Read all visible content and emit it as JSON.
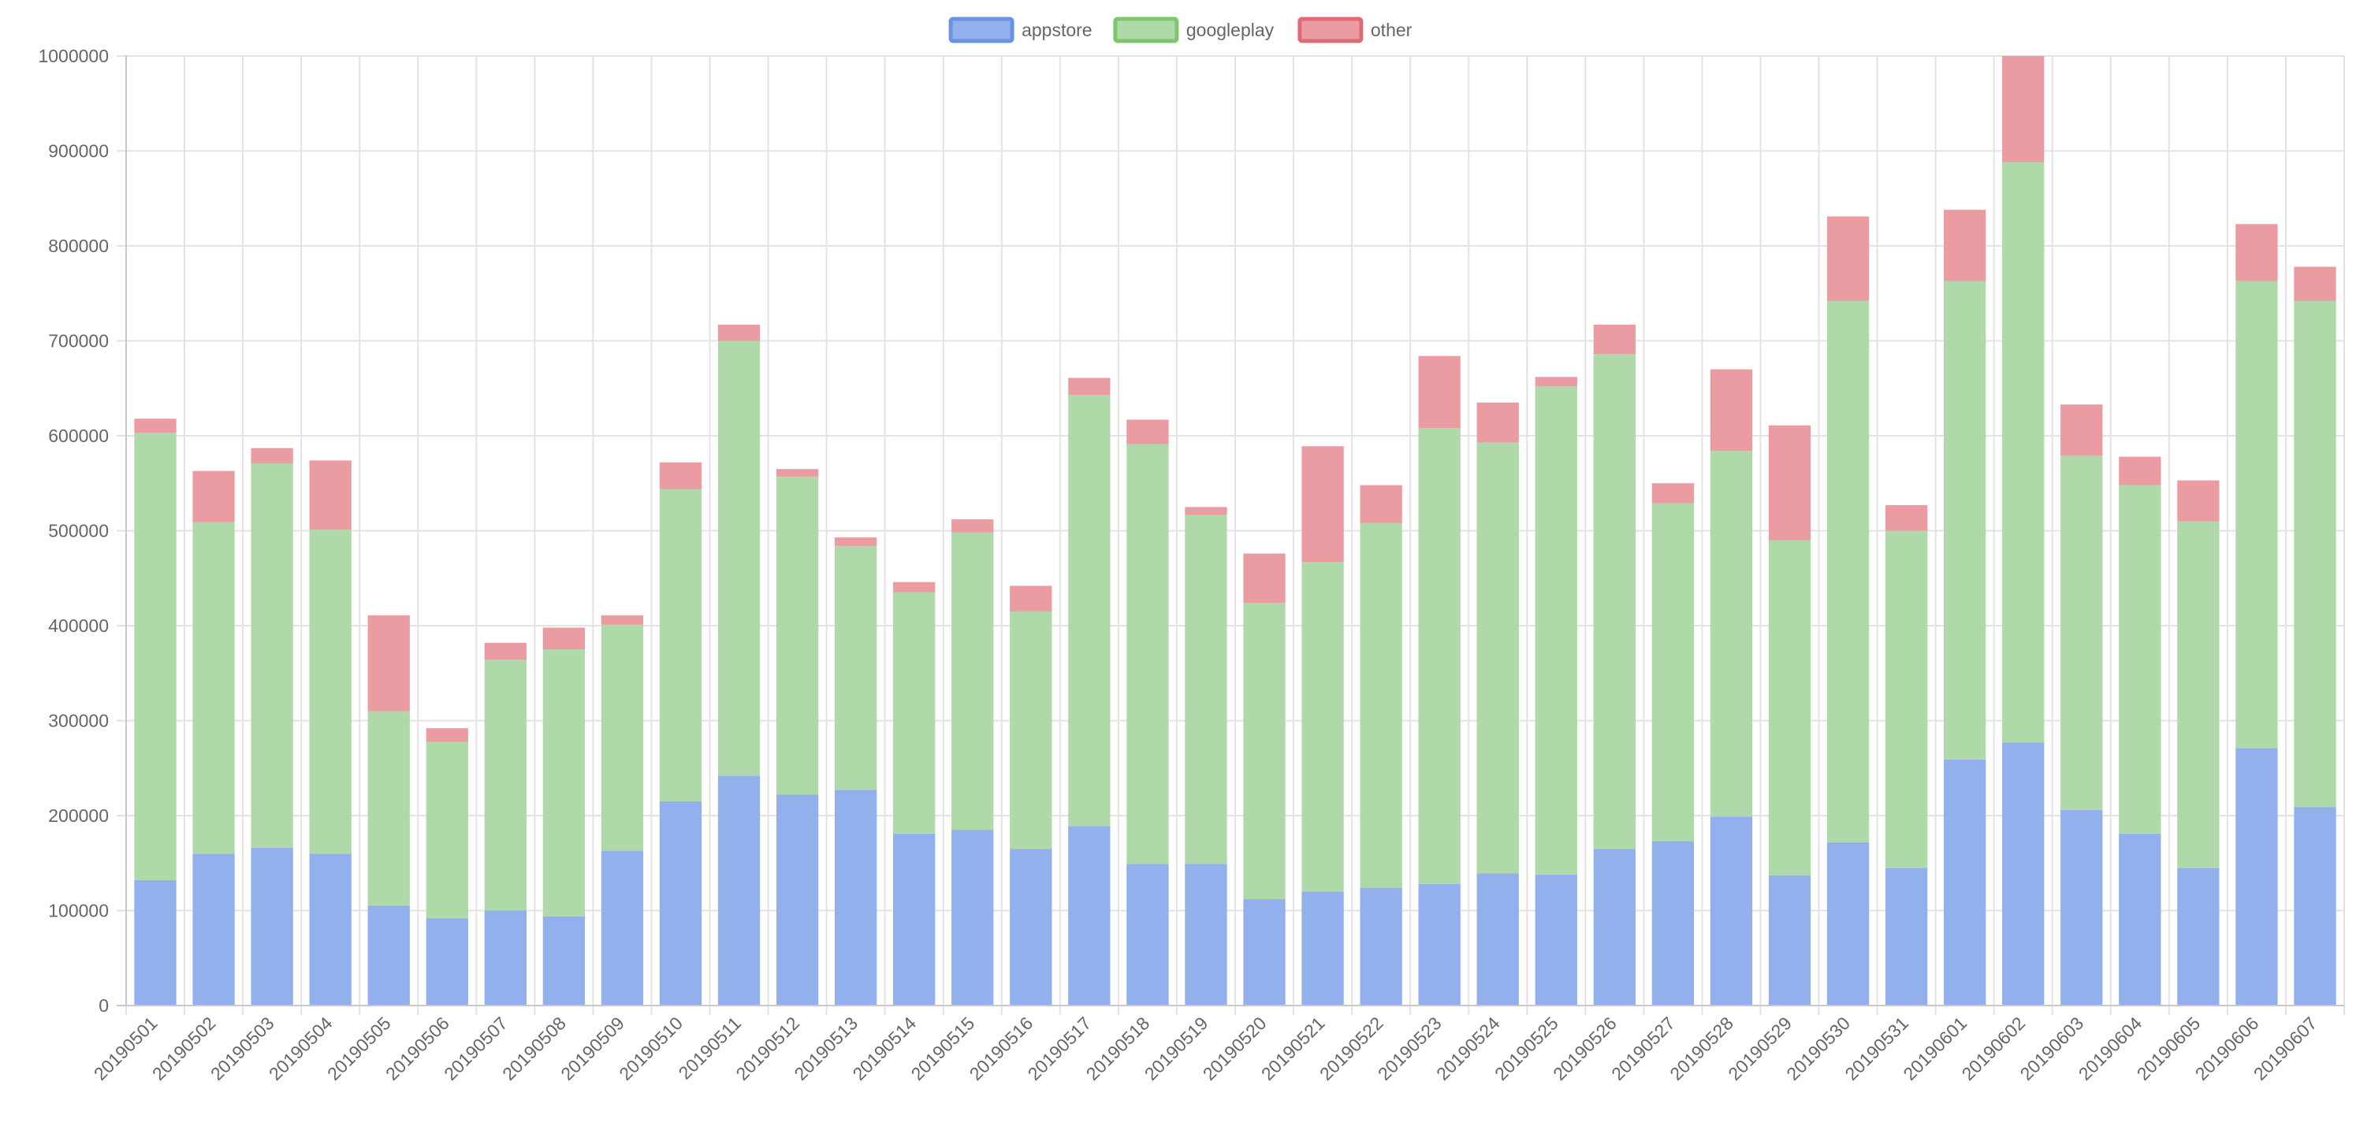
{
  "chart_data": {
    "type": "bar",
    "stacked": true,
    "title": "",
    "xlabel": "",
    "ylabel": "",
    "ylim": [
      0,
      1000000
    ],
    "y_ticks": [
      0,
      100000,
      200000,
      300000,
      400000,
      500000,
      600000,
      700000,
      800000,
      900000,
      1000000
    ],
    "grid": true,
    "legend_position": "top-center",
    "categories": [
      "20190501",
      "20190502",
      "20190503",
      "20190504",
      "20190505",
      "20190506",
      "20190507",
      "20190508",
      "20190509",
      "20190510",
      "20190511",
      "20190512",
      "20190513",
      "20190514",
      "20190515",
      "20190516",
      "20190517",
      "20190518",
      "20190519",
      "20190520",
      "20190521",
      "20190522",
      "20190523",
      "20190524",
      "20190525",
      "20190526",
      "20190527",
      "20190528",
      "20190529",
      "20190530",
      "20190531",
      "20190601",
      "20190602",
      "20190603",
      "20190604",
      "20190605",
      "20190606",
      "20190607"
    ],
    "series": [
      {
        "name": "appstore",
        "color": "#6a92e2",
        "fill": "#91b0ec",
        "values": [
          132000,
          160000,
          166000,
          160000,
          105000,
          92000,
          100000,
          94000,
          163000,
          215000,
          242000,
          222000,
          227000,
          181000,
          185000,
          165000,
          189000,
          149000,
          149000,
          112000,
          120000,
          124000,
          128000,
          139000,
          138000,
          165000,
          173000,
          199000,
          137000,
          172000,
          145000,
          259000,
          277000,
          206000,
          181000,
          145000,
          271000,
          209000
        ]
      },
      {
        "name": "googleplay",
        "color": "#7cc66e",
        "fill": "#b0d9aa",
        "values": [
          471000,
          349000,
          405000,
          341000,
          205000,
          186000,
          264000,
          281000,
          238000,
          329000,
          458000,
          335000,
          257000,
          254000,
          313000,
          250000,
          454000,
          442000,
          368000,
          312000,
          347000,
          384000,
          480000,
          454000,
          514000,
          521000,
          356000,
          385000,
          353000,
          570000,
          355000,
          504000,
          611000,
          373000,
          367000,
          365000,
          492000,
          533000
        ]
      },
      {
        "name": "other",
        "color": "#e06b74",
        "fill": "#eb9ca3",
        "values": [
          15000,
          54000,
          16000,
          73000,
          101000,
          14000,
          18000,
          23000,
          10000,
          28000,
          17000,
          8000,
          9000,
          11000,
          14000,
          27000,
          18000,
          26000,
          8000,
          52000,
          122000,
          40000,
          76000,
          42000,
          10000,
          31000,
          21000,
          86000,
          121000,
          89000,
          27000,
          75000,
          113000,
          54000,
          30000,
          43000,
          60000,
          36000
        ]
      }
    ]
  }
}
